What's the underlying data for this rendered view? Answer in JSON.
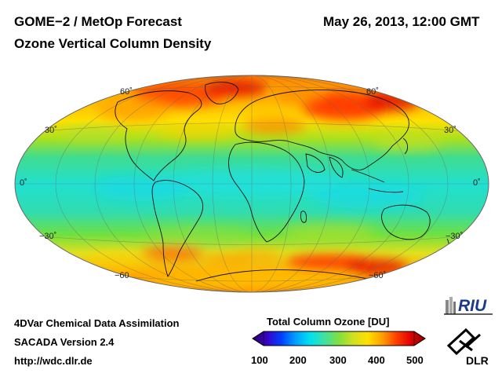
{
  "header": {
    "title": "GOME−2 / MetOp Forecast",
    "subtitle": "Ozone Vertical Column Density",
    "datetime": "May 26, 2013, 12:00 GMT"
  },
  "map": {
    "projection": "Hammer-Aitoff",
    "lat_labels_left": [
      "60˚",
      "30˚",
      "0˚",
      "−30˚",
      "−60"
    ],
    "lat_labels_right": [
      "60˚",
      "30˚",
      "0˚",
      "−30˚",
      "−60˚"
    ]
  },
  "footer": {
    "line1": "4DVar Chemical Data Assimilation",
    "line2": "SACADA Version 2.4",
    "line3": "http://wdc.dlr.de"
  },
  "colorbar": {
    "title": "Total Column Ozone [DU]",
    "ticks": [
      "100",
      "200",
      "300",
      "400",
      "500"
    ],
    "min": 100,
    "max": 500,
    "colors": [
      "#2a0060",
      "#3a00c8",
      "#0040ff",
      "#00a0ff",
      "#00e0f0",
      "#40e0a0",
      "#80e040",
      "#d0e020",
      "#ffe000",
      "#ffa000",
      "#ff4000",
      "#e00000",
      "#900000"
    ]
  },
  "logos": {
    "riu": "RIU",
    "dlr": "DLR"
  }
}
